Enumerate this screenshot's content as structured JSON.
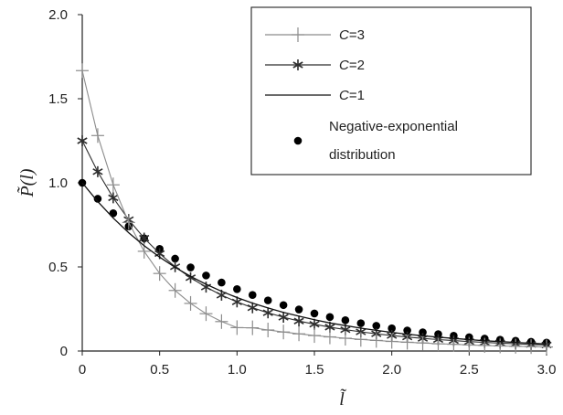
{
  "chart_data": {
    "type": "line",
    "xlabel": "l̃",
    "ylabel": "P̃(l)",
    "xlim": [
      0,
      3.0
    ],
    "ylim": [
      0,
      2.0
    ],
    "x_ticks": [
      "0",
      "0.5",
      "1.0",
      "1.5",
      "2.0",
      "2.5",
      "3.0"
    ],
    "y_ticks": [
      "0",
      "0.5",
      "1.0",
      "1.5",
      "2.0"
    ],
    "grid": false,
    "legend_position": "top-right",
    "x": [
      0,
      0.1,
      0.2,
      0.3,
      0.4,
      0.5,
      0.6,
      0.7,
      0.8,
      0.9,
      1.0,
      1.1,
      1.2,
      1.3,
      1.4,
      1.5,
      1.6,
      1.7,
      1.8,
      1.9,
      2.0,
      2.1,
      2.2,
      2.3,
      2.4,
      2.5,
      2.6,
      2.7,
      2.8,
      2.9,
      3.0
    ],
    "series": [
      {
        "name": "C=3",
        "legend_prefix": "C",
        "legend_suffix": "=3",
        "marker": "plus",
        "color": "#8c8c8c",
        "values": [
          1.667,
          1.281,
          0.988,
          0.764,
          0.593,
          0.461,
          0.36,
          0.283,
          0.222,
          0.175,
          0.139,
          0.138,
          0.125,
          0.113,
          0.102,
          0.092,
          0.084,
          0.076,
          0.069,
          0.063,
          0.057,
          0.052,
          0.048,
          0.043,
          0.04,
          0.036,
          0.033,
          0.03,
          0.028,
          0.026,
          0.024
        ]
      },
      {
        "name": "C=2",
        "legend_prefix": "C",
        "legend_suffix": "=2",
        "marker": "star",
        "color": "#2e2e2e",
        "values": [
          1.25,
          1.066,
          0.911,
          0.781,
          0.671,
          0.579,
          0.501,
          0.436,
          0.38,
          0.332,
          0.292,
          0.257,
          0.227,
          0.201,
          0.178,
          0.159,
          0.142,
          0.127,
          0.114,
          0.102,
          0.092,
          0.083,
          0.075,
          0.068,
          0.062,
          0.056,
          0.051,
          0.047,
          0.043,
          0.039,
          0.036
        ]
      },
      {
        "name": "C=1",
        "legend_prefix": "C",
        "legend_suffix": "=1",
        "marker": "none",
        "color": "#111111",
        "values": [
          1.0,
          0.889,
          0.79,
          0.703,
          0.626,
          0.558,
          0.498,
          0.444,
          0.397,
          0.355,
          0.318,
          0.285,
          0.256,
          0.23,
          0.207,
          0.186,
          0.167,
          0.151,
          0.136,
          0.123,
          0.111,
          0.1,
          0.091,
          0.082,
          0.075,
          0.068,
          0.061,
          0.056,
          0.051,
          0.046,
          0.042
        ]
      },
      {
        "name": "Negative-exponential distribution",
        "legend_lines": [
          "Negative-exponential",
          "distribution"
        ],
        "marker": "dot",
        "color": "#000000",
        "values": [
          1.0,
          0.905,
          0.819,
          0.741,
          0.67,
          0.607,
          0.549,
          0.497,
          0.449,
          0.407,
          0.368,
          0.333,
          0.301,
          0.273,
          0.247,
          0.223,
          0.202,
          0.183,
          0.165,
          0.15,
          0.135,
          0.122,
          0.111,
          0.1,
          0.091,
          0.082,
          0.074,
          0.067,
          0.061,
          0.055,
          0.05
        ]
      }
    ]
  }
}
